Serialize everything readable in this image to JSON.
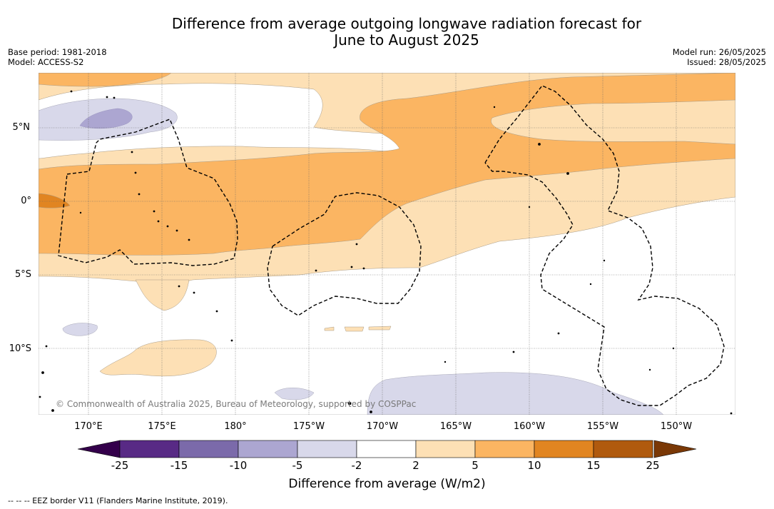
{
  "title_line1": "Difference from average outgoing longwave radiation forecast for",
  "title_line2": "June to August 2025",
  "base_period": "Base period: 1981-2018",
  "model": "Model: ACCESS-S2",
  "model_run": "Model run: 26/05/2025",
  "issued": "Issued: 28/05/2025",
  "lat_labels": [
    "5°N",
    "0°",
    "5°S",
    "10°S"
  ],
  "lon_labels": [
    "170°E",
    "175°E",
    "180°",
    "175°W",
    "170°W",
    "165°W",
    "160°W",
    "155°W",
    "150°W"
  ],
  "copyright": "© Commonwealth of Australia 2025, Bureau of Meteorology, supported by COSPPac",
  "colorbar": {
    "ticks": [
      "-25",
      "-15",
      "-10",
      "-5",
      "-2",
      "2",
      "5",
      "10",
      "15",
      "25"
    ],
    "colors": [
      "#582a85",
      "#7b6aaa",
      "#aca6d1",
      "#d8d8ea",
      "#ffffff",
      "#fde0b5",
      "#fbb562",
      "#e18521",
      "#b05a0e"
    ],
    "extend_low": "#34004b",
    "extend_high": "#7a3806",
    "label": "Difference from average (W/m2)"
  },
  "footer": "-- -- -- EEZ border V11 (Flanders Marine Institute, 2019)."
}
